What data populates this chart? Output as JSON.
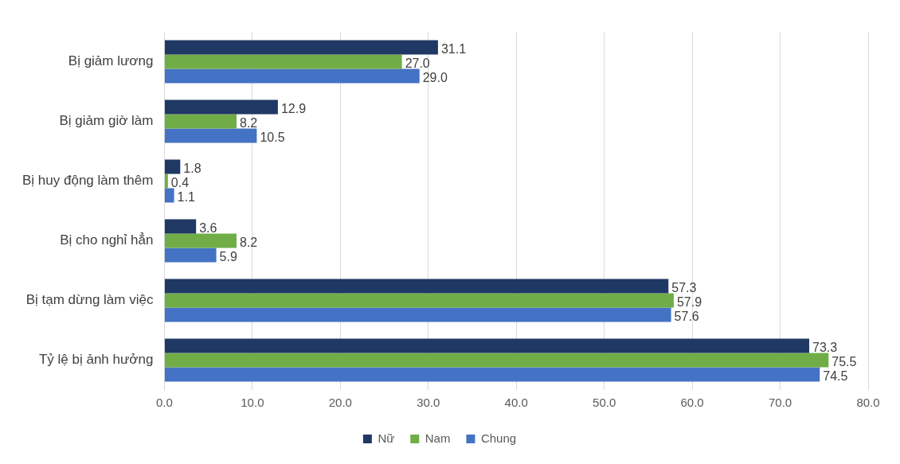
{
  "chart_data": {
    "type": "bar",
    "orientation": "horizontal",
    "categories": [
      "Bị giảm lương",
      "Bị giảm giờ làm",
      "Bị huy động làm thêm",
      "Bị cho nghỉ hẳn",
      "Bị tạm dừng làm việc",
      "Tỷ lệ bị ảnh hưởng"
    ],
    "series": [
      {
        "name": "Nữ",
        "color": "#203864",
        "values": [
          31.1,
          12.9,
          1.8,
          3.6,
          57.3,
          73.3
        ],
        "value_labels": [
          "31.1",
          "12.9",
          "1.8",
          "3.6",
          "57.3",
          "73.3"
        ]
      },
      {
        "name": "Nam",
        "color": "#70ad47",
        "values": [
          27,
          8.2,
          0.4,
          8.2,
          57.9,
          75.5
        ],
        "value_labels": [
          "27.0",
          "8.2",
          "0.4",
          "8.2",
          "57.9",
          "75.5"
        ]
      },
      {
        "name": "Chung",
        "color": "#4472c4",
        "values": [
          29,
          10.5,
          1.1,
          5.9,
          57.6,
          74.5
        ],
        "value_labels": [
          "29.0",
          "10.5",
          "1.1",
          "5.9",
          "57.6",
          "74.5"
        ]
      }
    ],
    "xlim": [
      0,
      80
    ],
    "xticks": [
      {
        "value": 0,
        "label": "0.0"
      },
      {
        "value": 10,
        "label": "10.0"
      },
      {
        "value": 20,
        "label": "20.0"
      },
      {
        "value": 30,
        "label": "30.0"
      },
      {
        "value": 40,
        "label": "40.0"
      },
      {
        "value": 50,
        "label": "50.0"
      },
      {
        "value": 60,
        "label": "60.0"
      },
      {
        "value": 70,
        "label": "70.0"
      },
      {
        "value": 80,
        "label": "80.0"
      }
    ],
    "grid": "x",
    "legend": "bottom"
  }
}
